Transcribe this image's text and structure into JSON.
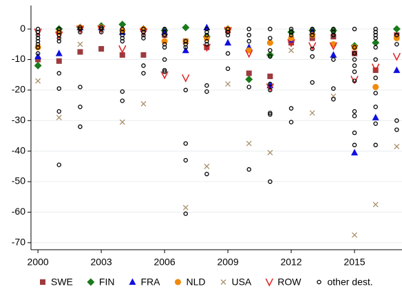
{
  "chart_data": {
    "type": "scatter",
    "xlim": [
      1999.67,
      2017.25
    ],
    "ylim": [
      -72.3,
      7.7
    ],
    "xticks": [
      2000,
      2003,
      2006,
      2009,
      2012,
      2015
    ],
    "yticks": [
      0,
      -10,
      -20,
      -30,
      -40,
      -50,
      -60,
      -70
    ],
    "grid": true,
    "legend": "bottom",
    "series": [
      {
        "name": "SWE",
        "color": "#9c3b3e",
        "marker": "square",
        "x": [
          2000,
          2001,
          2002,
          2003,
          2004,
          2005,
          2006,
          2007,
          2008,
          2009,
          2010,
          2011,
          2012,
          2013,
          2014,
          2015,
          2016,
          2017
        ],
        "values": [
          -10,
          -10.5,
          -7.5,
          -6.5,
          -8.5,
          -8.5,
          -2,
          -4,
          -6,
          -0.5,
          -14.5,
          -15.5,
          -4.5,
          -3,
          -2.5,
          -8,
          -13.5,
          -2
        ]
      },
      {
        "name": "FIN",
        "color": "#1b7a1b",
        "marker": "diamond",
        "x": [
          2000,
          2001,
          2002,
          2003,
          2004,
          2005,
          2006,
          2007,
          2008,
          2009,
          2010,
          2011,
          2012,
          2013,
          2014,
          2015,
          2016,
          2017
        ],
        "values": [
          -12,
          0,
          0.5,
          1,
          1.5,
          0,
          -0.5,
          0.5,
          -2.5,
          0,
          -16.5,
          -8.5,
          -1,
          -0.5,
          -0.5,
          -5.5,
          -4.5,
          0
        ]
      },
      {
        "name": "FRA",
        "color": "#1010e0",
        "marker": "triangle",
        "x": [
          2000,
          2001,
          2002,
          2003,
          2004,
          2005,
          2006,
          2007,
          2008,
          2009,
          2010,
          2011,
          2012,
          2013,
          2014,
          2015,
          2016,
          2017
        ],
        "values": [
          -9,
          -8,
          0.5,
          0.5,
          -1,
          0,
          -1,
          -7,
          0.5,
          -4.5,
          -6,
          -18.5,
          -3.5,
          -1,
          -8.5,
          -40.5,
          -29,
          -13.5
        ]
      },
      {
        "name": "NLD",
        "color": "#f08a0b",
        "marker": "circle",
        "x": [
          2000,
          2001,
          2002,
          2003,
          2004,
          2005,
          2006,
          2007,
          2008,
          2009,
          2010,
          2011,
          2012,
          2013,
          2014,
          2015,
          2016,
          2017
        ],
        "values": [
          -6,
          -1,
          0.5,
          0.5,
          -0.5,
          0,
          -4,
          -4,
          -3,
          0,
          -7,
          -4.5,
          -3,
          -2,
          -5,
          -6,
          -19,
          -3
        ]
      },
      {
        "name": "USA",
        "color": "#a8906a",
        "marker": "x",
        "x": [
          2000,
          2001,
          2002,
          2003,
          2004,
          2005,
          2006,
          2007,
          2008,
          2009,
          2010,
          2011,
          2012,
          2013,
          2014,
          2015,
          2016,
          2017
        ],
        "values": [
          -17,
          -29,
          -5,
          0.5,
          -30.5,
          -24.5,
          -2,
          -58.5,
          -45,
          -18,
          -37.5,
          -40.5,
          -7,
          -27.5,
          -22,
          -67.5,
          -57.5,
          -38.5
        ]
      },
      {
        "name": "ROW",
        "color": "#e02020",
        "marker": "v",
        "x": [
          2000,
          2001,
          2002,
          2003,
          2004,
          2005,
          2006,
          2007,
          2008,
          2009,
          2010,
          2011,
          2012,
          2013,
          2014,
          2015,
          2016,
          2017
        ],
        "values": [
          -1,
          -2,
          0,
          0,
          -6.5,
          -1,
          -15,
          -16,
          -6,
          -0.5,
          -8,
          -19,
          -4.5,
          -5.5,
          -5.5,
          -16.5,
          -12.5,
          -9
        ]
      },
      {
        "name": "other dest.",
        "color": "#000000",
        "marker": "open-circle",
        "x": [
          2000,
          2000,
          2000,
          2000,
          2000,
          2000,
          2000,
          2000,
          2001,
          2001,
          2001,
          2001,
          2001,
          2001,
          2001,
          2001,
          2001,
          2002,
          2002,
          2002,
          2002,
          2002,
          2002,
          2003,
          2003,
          2003,
          2004,
          2004,
          2004,
          2004,
          2004,
          2004,
          2004,
          2005,
          2005,
          2005,
          2005,
          2005,
          2005,
          2006,
          2006,
          2006,
          2006,
          2006,
          2006,
          2006,
          2006,
          2007,
          2007,
          2007,
          2007,
          2007,
          2007,
          2007,
          2008,
          2008,
          2008,
          2008,
          2008,
          2008,
          2008,
          2008,
          2009,
          2009,
          2009,
          2009,
          2009,
          2010,
          2010,
          2010,
          2010,
          2010,
          2011,
          2011,
          2011,
          2011,
          2011,
          2011,
          2011,
          2011,
          2011,
          2012,
          2012,
          2012,
          2012,
          2012,
          2013,
          2013,
          2013,
          2013,
          2013,
          2013,
          2014,
          2014,
          2014,
          2014,
          2014,
          2014,
          2015,
          2015,
          2015,
          2015,
          2015,
          2015,
          2015,
          2015,
          2015,
          2015,
          2015,
          2016,
          2016,
          2016,
          2016,
          2016,
          2016,
          2016,
          2016,
          2016,
          2016,
          2016,
          2017,
          2017,
          2017,
          2017
        ],
        "values": [
          0,
          -1,
          -2,
          -3,
          -4,
          -5,
          -6,
          -8,
          0,
          -1,
          -2,
          -3,
          -4,
          -14.5,
          -19.5,
          -27,
          -44.5,
          0,
          0.5,
          -1,
          -19,
          -25.5,
          -32,
          0,
          0.5,
          -1,
          0,
          -1,
          -2,
          -3,
          -4,
          -20.5,
          -23.5,
          0,
          -1,
          -2,
          -3,
          -12,
          -14.5,
          0,
          -1,
          -2,
          -5,
          -6,
          -10,
          -13.5,
          -14,
          -4,
          -5,
          -6,
          -20,
          -37.5,
          -43,
          -60.5,
          0,
          -1,
          -2,
          -4,
          -5,
          -18.5,
          -20.5,
          -47.5,
          0,
          -1,
          -2,
          -8,
          -13,
          0,
          -2,
          -4,
          -19,
          -46,
          0,
          -3,
          -7,
          -9,
          -18,
          -20,
          -27.5,
          -28,
          -50,
          0,
          -1,
          -2,
          -26,
          -30.5,
          0,
          -1,
          -2,
          -6.5,
          -9,
          -17.5,
          0,
          -1,
          -2,
          -10,
          -19.5,
          -23,
          0,
          -6,
          -8,
          -10,
          -12,
          -14,
          -17,
          -27,
          -28.5,
          -34,
          -38,
          0,
          -1,
          -2,
          -3,
          -6,
          -10,
          -16,
          -21,
          -25.5,
          -31,
          -38,
          -2,
          -5,
          -30,
          -33
        ]
      }
    ]
  }
}
